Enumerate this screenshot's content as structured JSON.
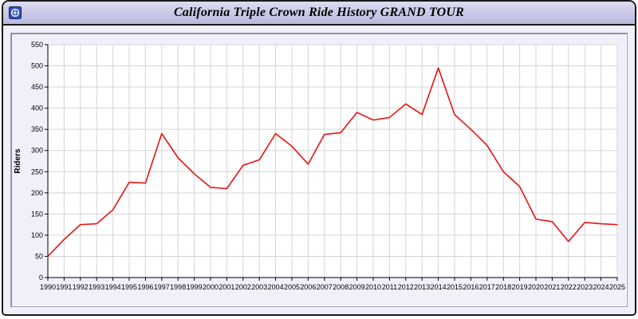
{
  "window": {
    "title": "California Triple Crown Ride History GRAND TOUR"
  },
  "icons": {
    "app_icon": "app-logo"
  },
  "colors": {
    "line": "#ee1111",
    "grid": "#d4d4d4",
    "plot_bg": "#ffffff",
    "axis": "#000000",
    "panel_bg": "#f0f0fa",
    "titlebar_bg": "#c6c6e4"
  },
  "chart_data": {
    "type": "line",
    "title": "California Triple Crown Ride History GRAND TOUR",
    "xlabel": "",
    "ylabel": "Riders",
    "ylim": [
      0,
      550
    ],
    "ytick_step": 50,
    "grid": true,
    "legend": "none",
    "x": [
      1990,
      1991,
      1992,
      1993,
      1994,
      1995,
      1996,
      1997,
      1998,
      1999,
      2000,
      2001,
      2002,
      2003,
      2004,
      2005,
      2006,
      2007,
      2008,
      2009,
      2010,
      2011,
      2012,
      2013,
      2014,
      2015,
      2016,
      2017,
      2018,
      2019,
      2020,
      2021,
      2022,
      2023,
      2024,
      2025
    ],
    "series": [
      {
        "name": "Riders",
        "color": "#ee1111",
        "values": [
          50,
          90,
          125,
          127,
          160,
          225,
          223,
          340,
          283,
          245,
          213,
          210,
          265,
          278,
          340,
          310,
          268,
          338,
          342,
          390,
          372,
          378,
          410,
          385,
          495,
          385,
          350,
          312,
          250,
          215,
          138,
          132,
          85,
          130,
          127,
          125
        ]
      }
    ]
  }
}
